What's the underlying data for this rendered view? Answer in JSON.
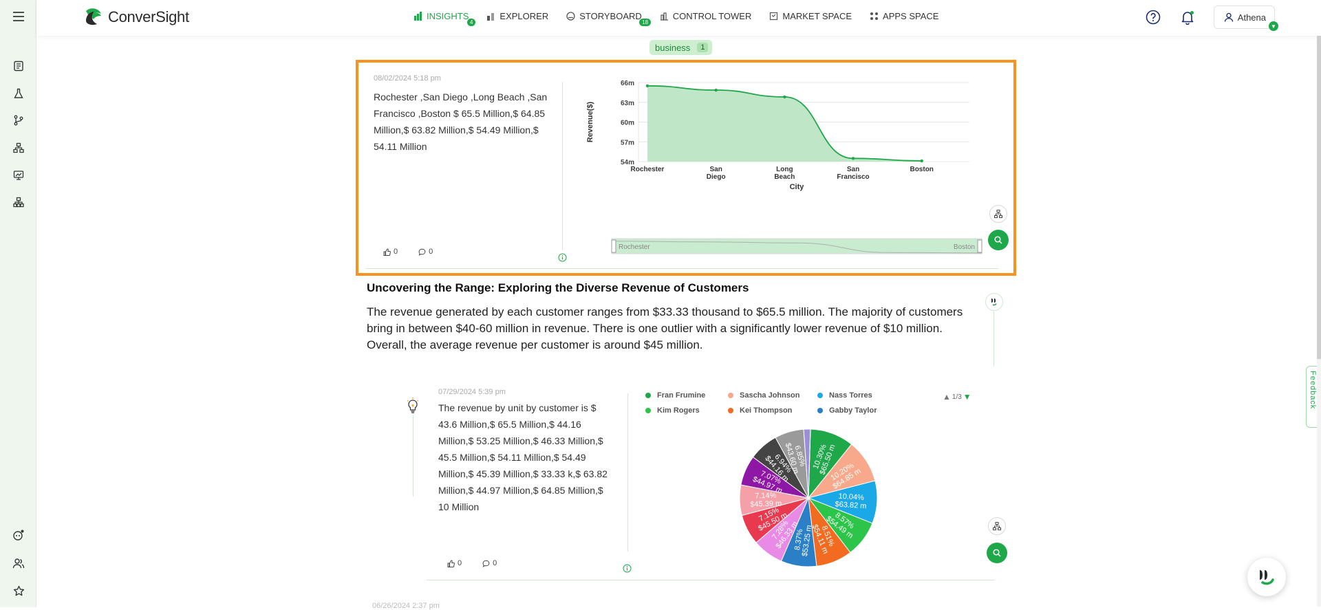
{
  "app": {
    "name": "ConverSight",
    "brand_color": "#1fa84a",
    "highlight_color": "#f7921e"
  },
  "nav": [
    {
      "label": "INSIGHTS",
      "badge": "4",
      "active": true,
      "icon": "bar-chart-icon"
    },
    {
      "label": "EXPLORER",
      "badge": "",
      "active": false,
      "icon": "explorer-icon"
    },
    {
      "label": "STORYBOARD",
      "badge": "18",
      "active": false,
      "icon": "storyboard-icon"
    },
    {
      "label": "CONTROL TOWER",
      "badge": "",
      "active": false,
      "icon": "control-tower-icon"
    },
    {
      "label": "MARKET SPACE",
      "badge": "",
      "active": false,
      "icon": "market-space-icon"
    },
    {
      "label": "APPS SPACE",
      "badge": "",
      "active": false,
      "icon": "apps-space-icon"
    }
  ],
  "user": {
    "name": "Athena"
  },
  "tag": {
    "label": "business",
    "count": "1"
  },
  "card1": {
    "date": "08/02/2024 5:18 pm",
    "summary": "Rochester ,San Diego ,Long Beach ,San Francisco ,Boston $ 65.5 Million,$ 64.85 Million,$ 63.82 Million,$ 54.49 Million,$ 54.11 Million",
    "likes": "0",
    "comments": "0",
    "slider": {
      "start": "Rochester",
      "end": "Boston"
    }
  },
  "insight": {
    "title": "Uncovering the Range: Exploring the Diverse Revenue of Customers",
    "text": "The revenue generated by each customer ranges from $33.33 thousand to $65.5 million. The majority of customers bring in between $40-60 million in revenue. There is one outlier with a significantly lower revenue of $10 million. Overall, the average revenue per customer is around $45 million."
  },
  "card2": {
    "date": "07/29/2024 5:39 pm",
    "summary": "The revenue by unit by customer is $ 43.6 Million,$ 65.5 Million,$ 44.16 Million,$ 53.25 Million,$ 46.33 Million,$ 45.5 Million,$ 54.11 Million,$ 54.49 Million,$ 45.39 Million,$ 33.33 k,$ 63.82 Million,$ 44.97 Million,$ 64.85 Million,$ 10 Million",
    "likes": "0",
    "comments": "0",
    "pager": "1/3"
  },
  "feedback_label": "Feedback",
  "next_card_date": "06/26/2024 2:37 pm",
  "chart_data": [
    {
      "type": "area",
      "x": [
        "Rochester",
        "San Diego",
        "Long Beach",
        "San Francisco",
        "Boston"
      ],
      "x_display": [
        [
          "Rochester"
        ],
        [
          "San",
          "Diego"
        ],
        [
          "Long",
          "Beach"
        ],
        [
          "San",
          "Francisco"
        ],
        [
          "Boston"
        ]
      ],
      "values": [
        65.5,
        64.85,
        63.82,
        54.49,
        54.11
      ],
      "xlabel": "City",
      "ylabel": "Revenue($)",
      "ylim": [
        54,
        66
      ],
      "yticks": [
        54,
        57,
        60,
        63,
        66
      ],
      "ytick_labels": [
        "54m",
        "57m",
        "60m",
        "63m",
        "66m"
      ],
      "color": "#1fa84a",
      "grid": true
    },
    {
      "type": "pie",
      "legend": [
        {
          "name": "Fran Frumine",
          "color": "#1fa84a"
        },
        {
          "name": "Sascha Johnson",
          "color": "#f9a98b"
        },
        {
          "name": "Nass Torres",
          "color": "#1aa9e6"
        },
        {
          "name": "Kim Rogers",
          "color": "#2cc54a"
        },
        {
          "name": "Kei Thompson",
          "color": "#f36b21"
        },
        {
          "name": "Gabby Taylor",
          "color": "#2a7fc7"
        }
      ],
      "slices": [
        {
          "pct": "10.30%",
          "val": "$65.50 m",
          "share": 10.3,
          "color": "#1fa84a"
        },
        {
          "pct": "10.20%",
          "val": "$64.85 m",
          "share": 10.2,
          "color": "#f9a98b"
        },
        {
          "pct": "10.04%",
          "val": "$63.82 m",
          "share": 10.04,
          "color": "#1aa9e6"
        },
        {
          "pct": "8.57%",
          "val": "$54.49 m",
          "share": 8.57,
          "color": "#2cc54a"
        },
        {
          "pct": "8.51%",
          "val": "$54.11 m",
          "share": 8.51,
          "color": "#f36b21"
        },
        {
          "pct": "8.37%",
          "val": "$53.25 m",
          "share": 8.37,
          "color": "#2a7fc7"
        },
        {
          "pct": "7.28%",
          "val": "$46.33 m",
          "share": 7.28,
          "color": "#e98be6"
        },
        {
          "pct": "7.15%",
          "val": "$45.50 m",
          "share": 7.15,
          "color": "#e8394f"
        },
        {
          "pct": "7.14%",
          "val": "$45.39 m",
          "share": 7.14,
          "color": "#f5a0a8"
        },
        {
          "pct": "7.07%",
          "val": "$44.97 m",
          "share": 7.07,
          "color": "#8e17a6"
        },
        {
          "pct": "6.94%",
          "val": "$44.16 m",
          "share": 6.94,
          "color": "#444444"
        },
        {
          "pct": "6.85%",
          "val": "$43.60 m",
          "share": 6.85,
          "color": "#9a9a9a"
        },
        {
          "pct": "",
          "val": "",
          "share": 1.57,
          "color": "#9c8fd8"
        },
        {
          "pct": "",
          "val": "",
          "share": 0.01,
          "color": "#cccccc"
        }
      ]
    }
  ]
}
